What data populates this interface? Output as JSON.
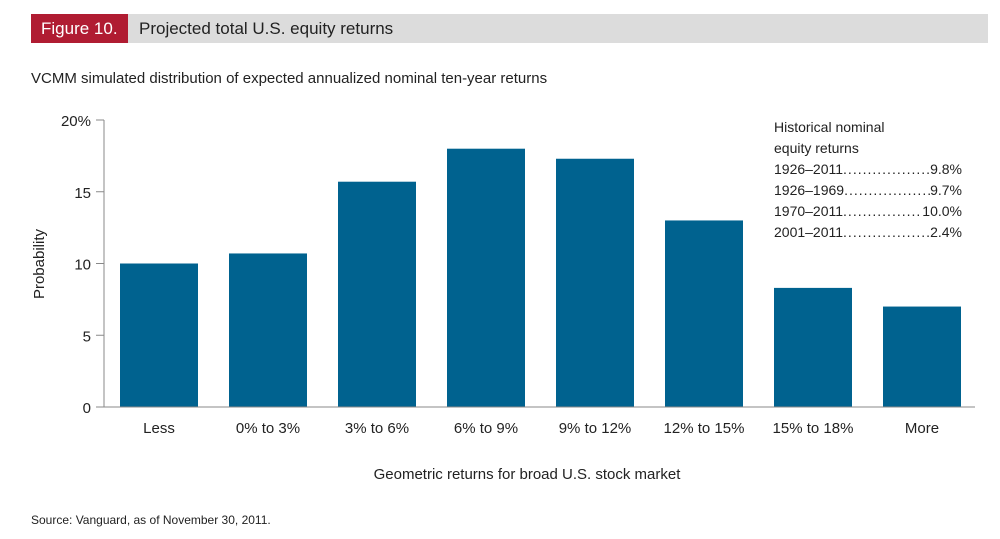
{
  "header": {
    "figure_label": "Figure 10.",
    "title": "Projected total U.S. equity returns"
  },
  "subtitle": "VCMM simulated distribution of expected annualized nominal ten-year returns",
  "source": "Source: Vanguard, as of November 30, 2011.",
  "colors": {
    "bar": "#00628f",
    "figure_label_bg": "#b01c32",
    "header_bg": "#dcdcdc"
  },
  "legend": {
    "title_line1": "Historical nominal",
    "title_line2": "equity returns",
    "rows": [
      {
        "period": "1926–2011",
        "value": "9.8%"
      },
      {
        "period": "1926–1969",
        "value": "9.7%"
      },
      {
        "period": "1970–2011",
        "value": "10.0%"
      },
      {
        "period": "2001–2011",
        "value": "2.4%"
      }
    ]
  },
  "chart_data": {
    "type": "bar",
    "categories": [
      "Less",
      "0% to 3%",
      "3% to 6%",
      "6% to 9%",
      "9% to 12%",
      "12% to 15%",
      "15% to 18%",
      "More"
    ],
    "values": [
      10.0,
      10.7,
      15.7,
      18.0,
      17.3,
      13.0,
      8.3,
      7.0
    ],
    "xlabel": "Geometric returns for broad U.S. stock market",
    "ylabel": "Probability",
    "ylim": [
      0,
      20
    ],
    "yticks": [
      "0",
      "5",
      "10",
      "15",
      "20%"
    ],
    "grid": false
  }
}
